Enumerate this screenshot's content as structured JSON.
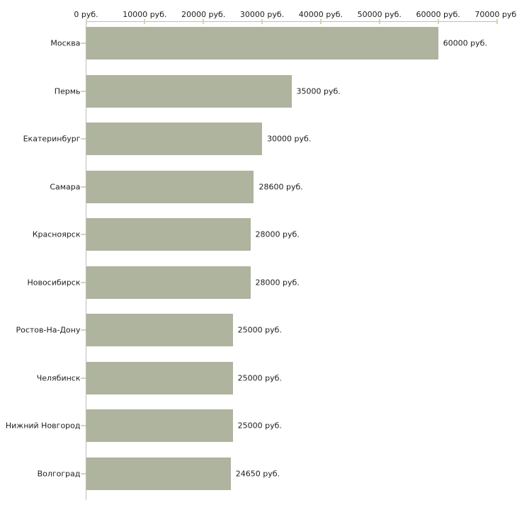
{
  "chart_data": {
    "type": "bar",
    "orientation": "horizontal",
    "unit": "руб.",
    "categories": [
      "Москва",
      "Пермь",
      "Екатеринбург",
      "Самара",
      "Красноярск",
      "Новосибирск",
      "Ростов-На-Дону",
      "Челябинск",
      "Нижний Новгород",
      "Волгоград"
    ],
    "values": [
      60000,
      35000,
      30000,
      28600,
      28000,
      28000,
      25000,
      25000,
      25000,
      24650
    ],
    "value_labels": [
      "60000 руб.",
      "35000 руб.",
      "30000 руб.",
      "28600 руб.",
      "28000 руб.",
      "28000 руб.",
      "25000 руб.",
      "25000 руб.",
      "25000 руб.",
      "24650 руб."
    ],
    "axis_ticks": [
      {
        "value": 0,
        "label": "0 руб."
      },
      {
        "value": 10000,
        "label": "10000 руб."
      },
      {
        "value": 20000,
        "label": "20000 руб."
      },
      {
        "value": 30000,
        "label": "30000 руб."
      },
      {
        "value": 40000,
        "label": "40000 руб."
      },
      {
        "value": 50000,
        "label": "50000 руб."
      },
      {
        "value": 60000,
        "label": "60000 руб."
      },
      {
        "value": 70000,
        "label": "70000 руб."
      }
    ],
    "xlim": [
      0,
      70000
    ],
    "grid": false,
    "legend": false,
    "value_axis_position": "top"
  },
  "colors": {
    "bar": "#aeb49d",
    "axis_line": "#bcbcbc",
    "tick_mark": "#d6d3b0",
    "text": "#1c1c1c",
    "background": "#ffffff"
  }
}
